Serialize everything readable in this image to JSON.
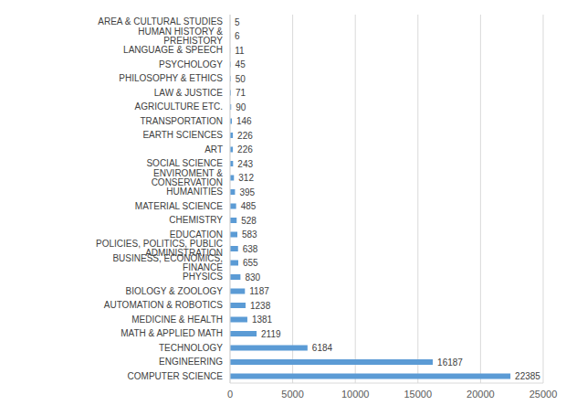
{
  "chart_data": {
    "type": "bar",
    "orientation": "horizontal",
    "categories": [
      "AREA & CULTURAL STUDIES",
      "HUMAN HISTORY & PREHISTORY",
      "LANGUAGE & SPEECH",
      "PSYCHOLOGY",
      "PHILOSOPHY & ETHICS",
      "LAW & JUSTICE",
      "AGRICULTURE ETC.",
      "TRANSPORTATION",
      "EARTH SCIENCES",
      "ART",
      "SOCIAL SCIENCE",
      "ENVIROMENT & CONSERVATION",
      "HUMANITIES",
      "MATERIAL SCIENCE",
      "CHEMISTRY",
      "EDUCATION",
      "POLICIES, POLITICS, PUBLIC ADMINISTRATION",
      "BUSINESS, ECONOMICS, FINANCE",
      "PHYSICS",
      "BIOLOGY & ZOOLOGY",
      "AUTOMATION & ROBOTICS",
      "MEDICINE & HEALTH",
      "MATH & APPLIED MATH",
      "TECHNOLOGY",
      "ENGINEERING",
      "COMPUTER SCIENCE"
    ],
    "values": [
      5,
      6,
      11,
      45,
      50,
      71,
      90,
      146,
      226,
      226,
      243,
      312,
      395,
      485,
      528,
      583,
      638,
      655,
      830,
      1187,
      1238,
      1381,
      2119,
      6184,
      16187,
      22385
    ],
    "color": "#5b9bd5",
    "xlim": [
      0,
      25000
    ],
    "xticks": [
      0,
      5000,
      10000,
      15000,
      20000,
      25000
    ],
    "grid": true,
    "data_labels": true
  }
}
